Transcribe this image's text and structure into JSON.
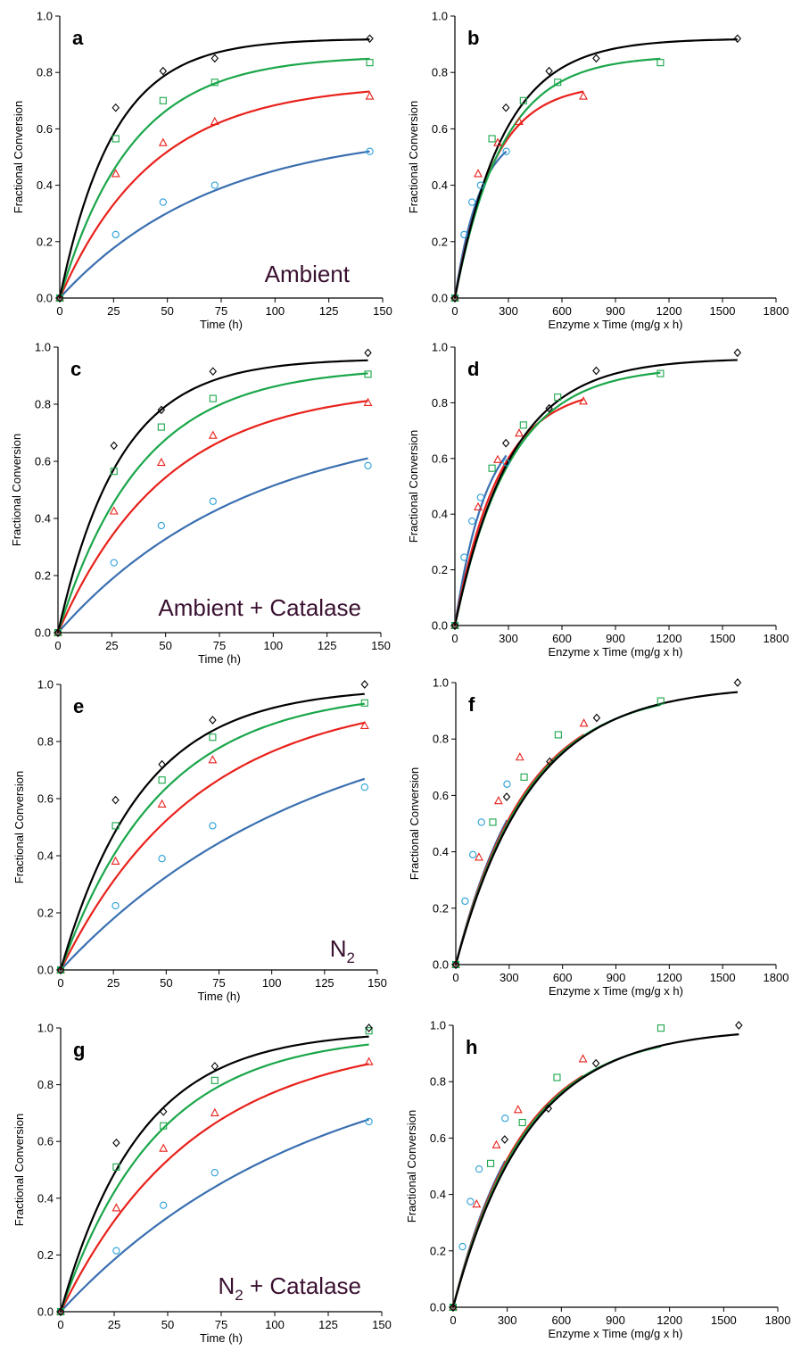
{
  "figure": {
    "series_colors": {
      "black": "#000000",
      "green": "#1aa64a",
      "red": "#e8211b",
      "blue": "#3a6fb0"
    },
    "marker_colors": {
      "black": "#000000",
      "green": "#1aa64a",
      "red": "#e8211b",
      "blue": "#2a9fd8"
    },
    "marker_shapes": {
      "black": "diamond",
      "green": "square",
      "red": "triangle",
      "blue": "circle"
    }
  },
  "chart_data": [
    {
      "id": "a",
      "type": "scatter",
      "panel_label": "a",
      "condition_label": "Ambient",
      "condition_sub": "",
      "condition_suffix": "",
      "xlabel": "Time (h)",
      "ylabel": "Fractional Conversion",
      "xlim": [
        0,
        150
      ],
      "ylim": [
        0,
        1.0
      ],
      "xticks": [
        0,
        25,
        50,
        75,
        100,
        125,
        150
      ],
      "yticks": [
        "0.0",
        "0.2",
        "0.4",
        "0.6",
        "0.8",
        "1.0"
      ],
      "series": [
        {
          "color": "black",
          "x": [
            0,
            26,
            48,
            72,
            144
          ],
          "y": [
            0,
            0.675,
            0.805,
            0.85,
            0.92
          ],
          "fit_a": 0.92,
          "fit_k": 0.04,
          "fit_xmax": 144
        },
        {
          "color": "green",
          "x": [
            0,
            26,
            48,
            72,
            144
          ],
          "y": [
            0,
            0.565,
            0.7,
            0.765,
            0.835
          ],
          "fit_a": 0.86,
          "fit_k": 0.03,
          "fit_xmax": 144
        },
        {
          "color": "red",
          "x": [
            0,
            26,
            48,
            72,
            144
          ],
          "y": [
            0,
            0.44,
            0.55,
            0.625,
            0.715
          ],
          "fit_a": 0.76,
          "fit_k": 0.023,
          "fit_xmax": 144
        },
        {
          "color": "blue",
          "x": [
            0,
            26,
            48,
            72,
            144
          ],
          "y": [
            0,
            0.225,
            0.34,
            0.4,
            0.52
          ],
          "fit_a": 0.6,
          "fit_k": 0.014,
          "fit_xmax": 144
        }
      ]
    },
    {
      "id": "b",
      "type": "scatter",
      "panel_label": "b",
      "condition_label": "",
      "condition_sub": "",
      "condition_suffix": "",
      "xlabel": "Enzyme x Time (mg/g x h)",
      "ylabel": "Fractional Conversion",
      "xlim": [
        0,
        1800
      ],
      "ylim": [
        0,
        1.0
      ],
      "xticks": [
        0,
        300,
        600,
        900,
        1200,
        1500,
        1800
      ],
      "yticks": [
        "0.0",
        "0.2",
        "0.4",
        "0.6",
        "0.8",
        "1.0"
      ],
      "series": [
        {
          "color": "black",
          "x": [
            0,
            286,
            528,
            792,
            1584
          ],
          "y": [
            0,
            0.675,
            0.805,
            0.85,
            0.92
          ],
          "fit_a": 0.92,
          "fit_k": 0.00364,
          "fit_xmax": 1584
        },
        {
          "color": "green",
          "x": [
            0,
            208,
            384,
            576,
            1152
          ],
          "y": [
            0,
            0.565,
            0.7,
            0.765,
            0.835
          ],
          "fit_a": 0.86,
          "fit_k": 0.00375,
          "fit_xmax": 1152
        },
        {
          "color": "red",
          "x": [
            0,
            130,
            240,
            360,
            720
          ],
          "y": [
            0,
            0.44,
            0.55,
            0.625,
            0.715
          ],
          "fit_a": 0.76,
          "fit_k": 0.0046,
          "fit_xmax": 720
        },
        {
          "color": "blue",
          "x": [
            0,
            52,
            96,
            144,
            288
          ],
          "y": [
            0,
            0.225,
            0.34,
            0.4,
            0.52
          ],
          "fit_a": 0.6,
          "fit_k": 0.007,
          "fit_xmax": 288
        }
      ]
    },
    {
      "id": "c",
      "type": "scatter",
      "panel_label": "c",
      "condition_label": "Ambient + Catalase",
      "condition_sub": "",
      "condition_suffix": "",
      "xlabel": "Time (h)",
      "ylabel": "Fractional Conversion",
      "xlim": [
        0,
        150
      ],
      "ylim": [
        0,
        1.0
      ],
      "xticks": [
        0,
        25,
        50,
        75,
        100,
        125,
        150
      ],
      "yticks": [
        "0.0",
        "0.2",
        "0.4",
        "0.6",
        "0.8",
        "1.0"
      ],
      "series": [
        {
          "color": "black",
          "x": [
            0,
            26,
            48,
            72,
            144
          ],
          "y": [
            0,
            0.655,
            0.78,
            0.915,
            0.98
          ],
          "fit_a": 0.96,
          "fit_k": 0.035,
          "fit_xmax": 144
        },
        {
          "color": "green",
          "x": [
            0,
            26,
            48,
            72,
            144
          ],
          "y": [
            0,
            0.565,
            0.72,
            0.82,
            0.905
          ],
          "fit_a": 0.93,
          "fit_k": 0.026,
          "fit_xmax": 144
        },
        {
          "color": "red",
          "x": [
            0,
            26,
            48,
            72,
            144
          ],
          "y": [
            0,
            0.425,
            0.595,
            0.69,
            0.805
          ],
          "fit_a": 0.86,
          "fit_k": 0.02,
          "fit_xmax": 144
        },
        {
          "color": "blue",
          "x": [
            0,
            26,
            48,
            72,
            144
          ],
          "y": [
            0,
            0.245,
            0.375,
            0.46,
            0.585
          ],
          "fit_a": 0.76,
          "fit_k": 0.0113,
          "fit_xmax": 144
        }
      ]
    },
    {
      "id": "d",
      "type": "scatter",
      "panel_label": "d",
      "condition_label": "",
      "condition_sub": "",
      "condition_suffix": "",
      "xlabel": "Enzyme x Time (mg/g x h)",
      "ylabel": "Fractional Conversion",
      "xlim": [
        0,
        1800
      ],
      "ylim": [
        0,
        1.0
      ],
      "xticks": [
        0,
        300,
        600,
        900,
        1200,
        1500,
        1800
      ],
      "yticks": [
        "0.0",
        "0.2",
        "0.4",
        "0.6",
        "0.8",
        "1.0"
      ],
      "series": [
        {
          "color": "black",
          "x": [
            0,
            286,
            528,
            792,
            1584
          ],
          "y": [
            0,
            0.655,
            0.78,
            0.915,
            0.98
          ],
          "fit_a": 0.96,
          "fit_k": 0.00318,
          "fit_xmax": 1584
        },
        {
          "color": "green",
          "x": [
            0,
            208,
            384,
            576,
            1152
          ],
          "y": [
            0,
            0.565,
            0.72,
            0.82,
            0.905
          ],
          "fit_a": 0.93,
          "fit_k": 0.00325,
          "fit_xmax": 1152
        },
        {
          "color": "red",
          "x": [
            0,
            130,
            240,
            360,
            720
          ],
          "y": [
            0,
            0.425,
            0.595,
            0.69,
            0.805
          ],
          "fit_a": 0.86,
          "fit_k": 0.004,
          "fit_xmax": 720
        },
        {
          "color": "blue",
          "x": [
            0,
            52,
            96,
            144,
            288
          ],
          "y": [
            0,
            0.245,
            0.375,
            0.46,
            0.585
          ],
          "fit_a": 0.76,
          "fit_k": 0.00565,
          "fit_xmax": 288
        }
      ]
    },
    {
      "id": "e",
      "type": "scatter",
      "panel_label": "e",
      "condition_label": "N",
      "condition_sub": "2",
      "condition_suffix": "",
      "xlabel": "Time (h)",
      "ylabel": "Fractional Conversion",
      "xlim": [
        0,
        150
      ],
      "ylim": [
        0,
        1.0
      ],
      "xticks": [
        0,
        25,
        50,
        75,
        100,
        125,
        150
      ],
      "yticks": [
        "0.0",
        "0.2",
        "0.4",
        "0.6",
        "0.8",
        "1.0"
      ],
      "series": [
        {
          "color": "black",
          "x": [
            0,
            26,
            48,
            72,
            144
          ],
          "y": [
            0,
            0.595,
            0.72,
            0.875,
            1.0
          ],
          "fit_a": 0.99,
          "fit_k": 0.026,
          "fit_xmax": 144
        },
        {
          "color": "green",
          "x": [
            0,
            26,
            48,
            72,
            144
          ],
          "y": [
            0,
            0.505,
            0.665,
            0.815,
            0.935
          ],
          "fit_a": 0.98,
          "fit_k": 0.021,
          "fit_xmax": 144
        },
        {
          "color": "red",
          "x": [
            0,
            26,
            48,
            72,
            144
          ],
          "y": [
            0,
            0.38,
            0.58,
            0.735,
            0.855
          ],
          "fit_a": 0.97,
          "fit_k": 0.0155,
          "fit_xmax": 144
        },
        {
          "color": "blue",
          "x": [
            0,
            26,
            48,
            72,
            144
          ],
          "y": [
            0,
            0.225,
            0.39,
            0.505,
            0.64
          ],
          "fit_a": 0.96,
          "fit_k": 0.0083,
          "fit_xmax": 144
        }
      ]
    },
    {
      "id": "f",
      "type": "scatter",
      "panel_label": "f",
      "condition_label": "",
      "condition_sub": "",
      "condition_suffix": "",
      "xlabel": "Enzyme x Time (mg/g x h)",
      "ylabel": "Fractional Conversion",
      "xlim": [
        0,
        1800
      ],
      "ylim": [
        0,
        1.0
      ],
      "xticks": [
        0,
        300,
        600,
        900,
        1200,
        1500,
        1800
      ],
      "yticks": [
        "0.0",
        "0.2",
        "0.4",
        "0.6",
        "0.8",
        "1.0"
      ],
      "series": [
        {
          "color": "black",
          "x": [
            0,
            286,
            528,
            792,
            1584
          ],
          "y": [
            0,
            0.595,
            0.72,
            0.875,
            1.0
          ],
          "fit_a": 0.99,
          "fit_k": 0.00236,
          "fit_xmax": 1584
        },
        {
          "color": "green",
          "x": [
            0,
            208,
            384,
            576,
            1152
          ],
          "y": [
            0,
            0.505,
            0.665,
            0.815,
            0.935
          ],
          "fit_a": 0.98,
          "fit_k": 0.00245,
          "fit_xmax": 1152
        },
        {
          "color": "red",
          "x": [
            0,
            130,
            240,
            360,
            720
          ],
          "y": [
            0,
            0.38,
            0.58,
            0.735,
            0.855
          ],
          "fit_a": 0.97,
          "fit_k": 0.00255,
          "fit_xmax": 720
        },
        {
          "color": "blue",
          "x": [
            0,
            52,
            96,
            144,
            288
          ],
          "y": [
            0,
            0.225,
            0.39,
            0.505,
            0.64
          ],
          "fit_a": 0.96,
          "fit_k": 0.00265,
          "fit_xmax": 288
        }
      ]
    },
    {
      "id": "g",
      "type": "scatter",
      "panel_label": "g",
      "condition_label": "N",
      "condition_sub": "2",
      "condition_suffix": " + Catalase",
      "xlabel": "Time (h)",
      "ylabel": "Fractional Conversion",
      "xlim": [
        0,
        150
      ],
      "ylim": [
        0,
        1.0
      ],
      "xticks": [
        0,
        25,
        50,
        75,
        100,
        125,
        150
      ],
      "yticks": [
        "0.0",
        "0.2",
        "0.4",
        "0.6",
        "0.8",
        "1.0"
      ],
      "series": [
        {
          "color": "black",
          "x": [
            0,
            26,
            48,
            72,
            144
          ],
          "y": [
            0,
            0.595,
            0.705,
            0.865,
            1.0
          ],
          "fit_a": 0.99,
          "fit_k": 0.027,
          "fit_xmax": 144
        },
        {
          "color": "green",
          "x": [
            0,
            26,
            48,
            72,
            144
          ],
          "y": [
            0,
            0.51,
            0.655,
            0.815,
            0.99
          ],
          "fit_a": 0.98,
          "fit_k": 0.0225,
          "fit_xmax": 144
        },
        {
          "color": "red",
          "x": [
            0,
            26,
            48,
            72,
            144
          ],
          "y": [
            0,
            0.365,
            0.575,
            0.7,
            0.88
          ],
          "fit_a": 0.97,
          "fit_k": 0.016,
          "fit_xmax": 144
        },
        {
          "color": "blue",
          "x": [
            0,
            26,
            48,
            72,
            144
          ],
          "y": [
            0,
            0.215,
            0.375,
            0.49,
            0.67
          ],
          "fit_a": 0.96,
          "fit_k": 0.0085,
          "fit_xmax": 144
        }
      ]
    },
    {
      "id": "h",
      "type": "scatter",
      "panel_label": "h",
      "condition_label": "",
      "condition_sub": "",
      "condition_suffix": "",
      "xlabel": "Enzyme x Time (mg/g x h)",
      "ylabel": "Fractional Conversion",
      "xlim": [
        0,
        1800
      ],
      "ylim": [
        0,
        1.0
      ],
      "xticks": [
        0,
        300,
        600,
        900,
        1200,
        1500,
        1800
      ],
      "yticks": [
        "0.0",
        "0.2",
        "0.4",
        "0.6",
        "0.8",
        "1.0"
      ],
      "series": [
        {
          "color": "black",
          "x": [
            0,
            286,
            528,
            792,
            1584
          ],
          "y": [
            0,
            0.595,
            0.705,
            0.865,
            1.0
          ],
          "fit_a": 0.99,
          "fit_k": 0.0024,
          "fit_xmax": 1584
        },
        {
          "color": "green",
          "x": [
            0,
            208,
            384,
            576,
            1152
          ],
          "y": [
            0,
            0.51,
            0.655,
            0.815,
            0.99
          ],
          "fit_a": 0.98,
          "fit_k": 0.0025,
          "fit_xmax": 1152
        },
        {
          "color": "red",
          "x": [
            0,
            130,
            240,
            360,
            720
          ],
          "y": [
            0,
            0.365,
            0.575,
            0.7,
            0.88
          ],
          "fit_a": 0.97,
          "fit_k": 0.0026,
          "fit_xmax": 720
        },
        {
          "color": "blue",
          "x": [
            0,
            52,
            96,
            144,
            288
          ],
          "y": [
            0,
            0.215,
            0.375,
            0.49,
            0.67
          ],
          "fit_a": 0.96,
          "fit_k": 0.0027,
          "fit_xmax": 288
        }
      ]
    }
  ]
}
